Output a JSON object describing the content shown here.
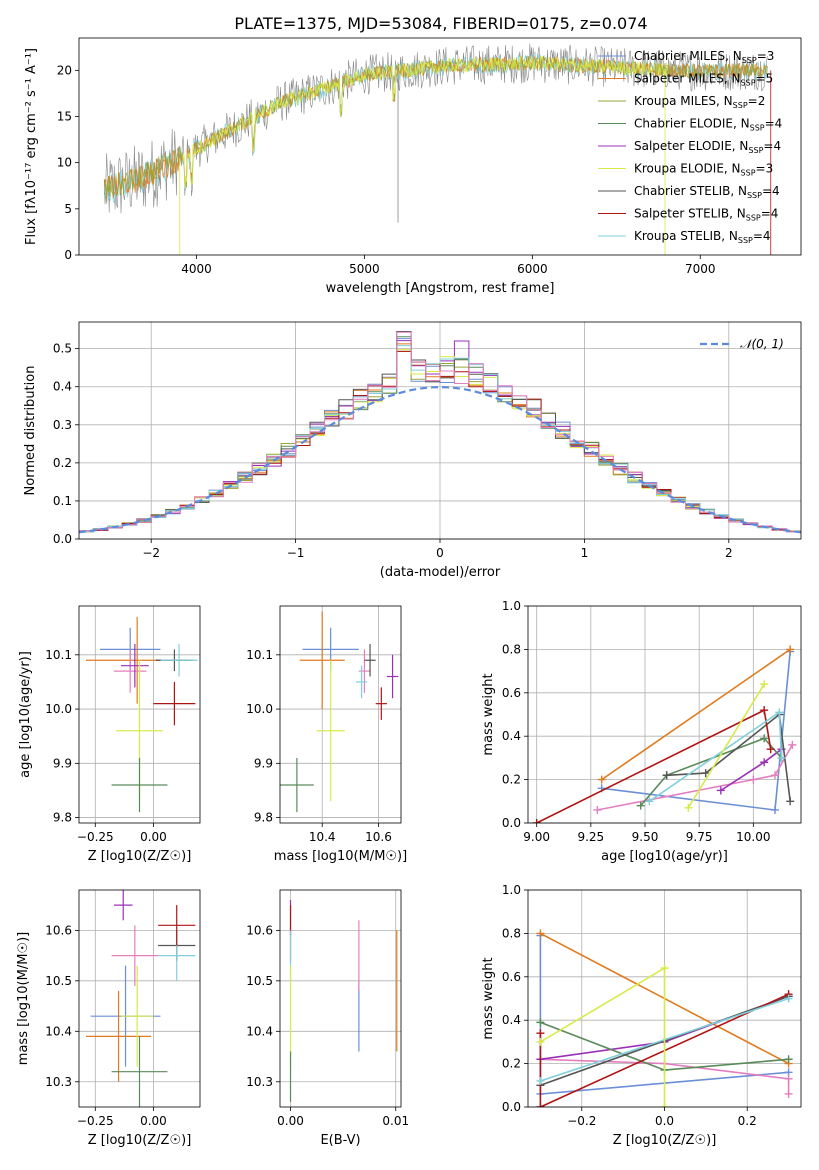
{
  "figure": {
    "title": "PLATE=1375, MJD=53084, FIBERID=0175, z=0.074"
  },
  "colors": [
    "#6b8fd6",
    "#e07b1f",
    "#9aa63a",
    "#5a8a5a",
    "#9b30b8",
    "#d8ea4a",
    "#555555",
    "#b01414",
    "#7fd0dc",
    "#e47fbf",
    "#888888"
  ],
  "chart_data": [
    {
      "id": "spectrum",
      "type": "line",
      "xlabel": "wavelength [Angstrom, rest frame]",
      "ylabel": "Flux [fλ10⁻¹⁷ erg cm⁻² s⁻¹ A⁻¹]",
      "xlim": [
        3300,
        7600
      ],
      "ylim": [
        0,
        23.5
      ],
      "xticks": [
        4000,
        5000,
        6000,
        7000
      ],
      "yticks": [
        0,
        5,
        10,
        15,
        20
      ],
      "continuum": {
        "x": [
          3450,
          3700,
          4000,
          4300,
          4500,
          5000,
          5500,
          6000,
          6500,
          7000,
          7400
        ],
        "y": [
          7.0,
          8.5,
          11.5,
          14.5,
          16.5,
          19.5,
          20.5,
          20.8,
          20.3,
          19.9,
          20.0
        ]
      },
      "legend": [
        {
          "label": "Chabrier MILES, N",
          "sub": "SSP",
          "eq": "=3",
          "color_index": 0
        },
        {
          "label": "Salpeter MILES, N",
          "sub": "SSP",
          "eq": "=5",
          "color_index": 1
        },
        {
          "label": "Kroupa MILES, N",
          "sub": "SSP",
          "eq": "=2",
          "color_index": 2
        },
        {
          "label": "Chabrier ELODIE, N",
          "sub": "SSP",
          "eq": "=4",
          "color_index": 3
        },
        {
          "label": "Salpeter ELODIE, N",
          "sub": "SSP",
          "eq": "=4",
          "color_index": 4
        },
        {
          "label": "Kroupa ELODIE, N",
          "sub": "SSP",
          "eq": "=3",
          "color_index": 5
        },
        {
          "label": "Chabrier STELIB, N",
          "sub": "SSP",
          "eq": "=4",
          "color_index": 6
        },
        {
          "label": "Salpeter STELIB, N",
          "sub": "SSP",
          "eq": "=4",
          "color_index": 7
        },
        {
          "label": "Kroupa STELIB, N",
          "sub": "SSP",
          "eq": "=4",
          "color_index": 8
        }
      ]
    },
    {
      "id": "residuals",
      "type": "histogram",
      "xlabel": "(data-model)/error",
      "ylabel": "Normed distribution",
      "xlim": [
        -2.5,
        2.5
      ],
      "ylim": [
        0,
        0.57
      ],
      "xticks": [
        -2,
        -1,
        0,
        1,
        2
      ],
      "xtick_labels": [
        "−2",
        "−1",
        "0",
        "1",
        "2"
      ],
      "yticks": [
        0.0,
        0.1,
        0.2,
        0.3,
        0.4,
        0.5
      ],
      "bin_width": 0.1,
      "gaussian_label": "𝒩(0, 1)",
      "grid": true
    },
    {
      "id": "age_vs_Z",
      "type": "errorbar",
      "xlabel": "Z [log10(Z/Z☉)]",
      "ylabel": "age  [log10(age/yr)]",
      "xlim": [
        -0.32,
        0.2
      ],
      "ylim": [
        9.79,
        10.19
      ],
      "xticks": [
        -0.25,
        0.0
      ],
      "xtick_labels": [
        "−0.25",
        "0.00"
      ],
      "yticks": [
        9.8,
        9.9,
        10.0,
        10.1
      ],
      "points": [
        {
          "x": -0.1,
          "xerr": 0.13,
          "y": 10.11,
          "yerr": 0.04,
          "c": 0
        },
        {
          "x": -0.07,
          "xerr": 0.22,
          "y": 10.09,
          "yerr": 0.08,
          "c": 1
        },
        {
          "x": -0.1,
          "xerr": 0.07,
          "y": 10.07,
          "yerr": 0.04,
          "c": 9
        },
        {
          "x": -0.08,
          "xerr": 0.06,
          "y": 10.08,
          "yerr": 0.04,
          "c": 4
        },
        {
          "x": 0.09,
          "xerr": 0.08,
          "y": 10.09,
          "yerr": 0.02,
          "c": 6
        },
        {
          "x": 0.11,
          "xerr": 0.08,
          "y": 10.09,
          "yerr": 0.03,
          "c": 8
        },
        {
          "x": 0.09,
          "xerr": 0.09,
          "y": 10.01,
          "yerr": 0.04,
          "c": 7
        },
        {
          "x": -0.06,
          "xerr": 0.1,
          "y": 9.96,
          "yerr": 0.13,
          "c": 5
        },
        {
          "x": -0.06,
          "xerr": 0.12,
          "y": 9.86,
          "yerr": 0.05,
          "c": 3
        }
      ]
    },
    {
      "id": "age_vs_mass",
      "type": "errorbar",
      "xlabel": "mass [log10(M/M☉)]",
      "ylabel": "",
      "xlim": [
        10.25,
        10.68
      ],
      "ylim": [
        9.79,
        10.19
      ],
      "xticks": [
        10.4,
        10.6
      ],
      "xtick_labels": [
        "10.4",
        "10.6"
      ],
      "yticks": [
        9.8,
        9.9,
        10.0,
        10.1
      ],
      "points": [
        {
          "x": 10.43,
          "xerr": 0.1,
          "y": 10.11,
          "yerr": 0.04,
          "c": 0
        },
        {
          "x": 10.4,
          "xerr": 0.08,
          "y": 10.09,
          "yerr": 0.09,
          "c": 1
        },
        {
          "x": 10.55,
          "xerr": 0.02,
          "y": 10.07,
          "yerr": 0.04,
          "c": 9
        },
        {
          "x": 10.65,
          "xerr": 0.02,
          "y": 10.06,
          "yerr": 0.04,
          "c": 4
        },
        {
          "x": 10.57,
          "xerr": 0.02,
          "y": 10.09,
          "yerr": 0.03,
          "c": 6
        },
        {
          "x": 10.54,
          "xerr": 0.02,
          "y": 10.05,
          "yerr": 0.03,
          "c": 8
        },
        {
          "x": 10.61,
          "xerr": 0.02,
          "y": 10.01,
          "yerr": 0.03,
          "c": 7
        },
        {
          "x": 10.43,
          "xerr": 0.05,
          "y": 9.96,
          "yerr": 0.13,
          "c": 5
        },
        {
          "x": 10.31,
          "xerr": 0.06,
          "y": 9.86,
          "yerr": 0.05,
          "c": 3
        }
      ]
    },
    {
      "id": "weight_vs_age",
      "type": "line",
      "xlabel": "age  [log10(age/yr)]",
      "ylabel": "mass weight",
      "xlim": [
        8.96,
        10.22
      ],
      "ylim": [
        0,
        1.0
      ],
      "xticks": [
        9.0,
        9.25,
        9.5,
        9.75,
        10.0
      ],
      "xtick_labels": [
        "9.00",
        "9.25",
        "9.50",
        "9.75",
        "10.00"
      ],
      "yticks": [
        0.0,
        0.2,
        0.4,
        0.6,
        0.8,
        1.0
      ],
      "series": [
        {
          "c": 0,
          "x": [
            9.3,
            10.1,
            10.17
          ],
          "y": [
            0.16,
            0.06,
            0.79
          ]
        },
        {
          "c": 1,
          "x": [
            9.3,
            10.17
          ],
          "y": [
            0.2,
            0.8
          ]
        },
        {
          "c": 9,
          "x": [
            9.28,
            10.0,
            10.1,
            10.18
          ],
          "y": [
            0.06,
            0.2,
            0.22,
            0.36
          ]
        },
        {
          "c": 4,
          "x": [
            9.85,
            10.05,
            10.13
          ],
          "y": [
            0.15,
            0.28,
            0.34
          ]
        },
        {
          "c": 3,
          "x": [
            9.48,
            9.6,
            10.05,
            10.13
          ],
          "y": [
            0.08,
            0.22,
            0.39,
            0.3
          ]
        },
        {
          "c": 6,
          "x": [
            9.6,
            9.78,
            10.12,
            10.17
          ],
          "y": [
            0.22,
            0.23,
            0.5,
            0.1
          ]
        },
        {
          "c": 7,
          "x": [
            9.0,
            10.05,
            10.08
          ],
          "y": [
            0.0,
            0.52,
            0.34
          ]
        },
        {
          "c": 8,
          "x": [
            9.52,
            10.12,
            10.13
          ],
          "y": [
            0.1,
            0.51,
            0.3
          ]
        },
        {
          "c": 5,
          "x": [
            9.7,
            10.05
          ],
          "y": [
            0.07,
            0.64
          ]
        }
      ]
    },
    {
      "id": "mass_vs_Z",
      "type": "errorbar",
      "xlabel": "Z [log10(Z/Z☉)]",
      "ylabel": "mass [log10(M/M☉)]",
      "xlim": [
        -0.32,
        0.2
      ],
      "ylim": [
        10.25,
        10.68
      ],
      "xticks": [
        -0.25,
        0.0
      ],
      "xtick_labels": [
        "−0.25",
        "0.00"
      ],
      "yticks": [
        10.3,
        10.4,
        10.5,
        10.6
      ],
      "points": [
        {
          "x": -0.12,
          "xerr": 0.15,
          "y": 10.43,
          "yerr": 0.1,
          "c": 0
        },
        {
          "x": -0.15,
          "xerr": 0.14,
          "y": 10.39,
          "yerr": 0.09,
          "c": 1
        },
        {
          "x": -0.08,
          "xerr": 0.1,
          "y": 10.55,
          "yerr": 0.06,
          "c": 9
        },
        {
          "x": -0.13,
          "xerr": 0.04,
          "y": 10.65,
          "yerr": 0.03,
          "c": 4
        },
        {
          "x": 0.1,
          "xerr": 0.08,
          "y": 10.57,
          "yerr": 0.03,
          "c": 6
        },
        {
          "x": 0.1,
          "xerr": 0.08,
          "y": 10.55,
          "yerr": 0.05,
          "c": 8
        },
        {
          "x": 0.1,
          "xerr": 0.08,
          "y": 10.61,
          "yerr": 0.04,
          "c": 7
        },
        {
          "x": -0.07,
          "xerr": 0.07,
          "y": 10.43,
          "yerr": 0.1,
          "c": 5
        },
        {
          "x": -0.06,
          "xerr": 0.12,
          "y": 10.32,
          "yerr": 0.07,
          "c": 3
        }
      ]
    },
    {
      "id": "mass_vs_ebv",
      "type": "errorbar",
      "xlabel": "E(B-V)",
      "ylabel": "",
      "xlim": [
        -0.001,
        0.0105
      ],
      "ylim": [
        10.25,
        10.68
      ],
      "xticks": [
        0.0,
        0.01
      ],
      "xtick_labels": [
        "0.00",
        "0.01"
      ],
      "yticks": [
        10.3,
        10.4,
        10.5,
        10.6
      ],
      "points": [
        {
          "x": 0.0,
          "y": 10.6,
          "yerr": 0.06,
          "c": 4
        },
        {
          "x": 0.0,
          "y": 10.62,
          "yerr": 0.03,
          "c": 7
        },
        {
          "x": 0.0,
          "y": 10.55,
          "yerr": 0.05,
          "c": 8
        },
        {
          "x": 0.0,
          "y": 10.43,
          "yerr": 0.1,
          "c": 5
        },
        {
          "x": 0.0,
          "y": 10.31,
          "yerr": 0.05,
          "c": 3
        },
        {
          "x": 0.0065,
          "y": 10.43,
          "yerr": 0.07,
          "c": 0
        },
        {
          "x": 0.0065,
          "y": 10.55,
          "yerr": 0.07,
          "c": 9
        },
        {
          "x": 0.0101,
          "y": 10.48,
          "yerr": 0.12,
          "c": 1
        }
      ]
    },
    {
      "id": "weight_vs_Z",
      "type": "line",
      "xlabel": "Z [log10(Z/Z☉)]",
      "ylabel": "mass weight",
      "xlim": [
        -0.33,
        0.33
      ],
      "ylim": [
        0,
        1.0
      ],
      "xticks": [
        -0.2,
        0.0,
        0.2
      ],
      "xtick_labels": [
        "−0.2",
        "0.0",
        "0.2"
      ],
      "yticks": [
        0.0,
        0.2,
        0.4,
        0.6,
        0.8,
        1.0
      ],
      "series": [
        {
          "c": 0,
          "x": [
            -0.3,
            -0.3,
            0.3
          ],
          "y": [
            0.79,
            0.06,
            0.16
          ]
        },
        {
          "c": 1,
          "x": [
            -0.3,
            0.3
          ],
          "y": [
            0.8,
            0.2
          ]
        },
        {
          "c": 9,
          "x": [
            -0.3,
            0.0,
            0.3,
            0.3
          ],
          "y": [
            0.22,
            0.2,
            0.13,
            0.06
          ]
        },
        {
          "c": 4,
          "x": [
            -0.3,
            0.0,
            0.3
          ],
          "y": [
            0.22,
            0.3,
            0.51
          ]
        },
        {
          "c": 3,
          "x": [
            -0.3,
            0.0,
            0.3
          ],
          "y": [
            0.39,
            0.17,
            0.22
          ]
        },
        {
          "c": 6,
          "x": [
            -0.3,
            0.3
          ],
          "y": [
            0.1,
            0.51
          ]
        },
        {
          "c": 7,
          "x": [
            -0.3,
            -0.3,
            0.3
          ],
          "y": [
            0.34,
            0.0,
            0.52
          ]
        },
        {
          "c": 8,
          "x": [
            -0.3,
            0.3
          ],
          "y": [
            0.12,
            0.5
          ]
        },
        {
          "c": 5,
          "x": [
            -0.3,
            0.0,
            0.0
          ],
          "y": [
            0.3,
            0.64,
            0.0
          ]
        }
      ]
    }
  ]
}
